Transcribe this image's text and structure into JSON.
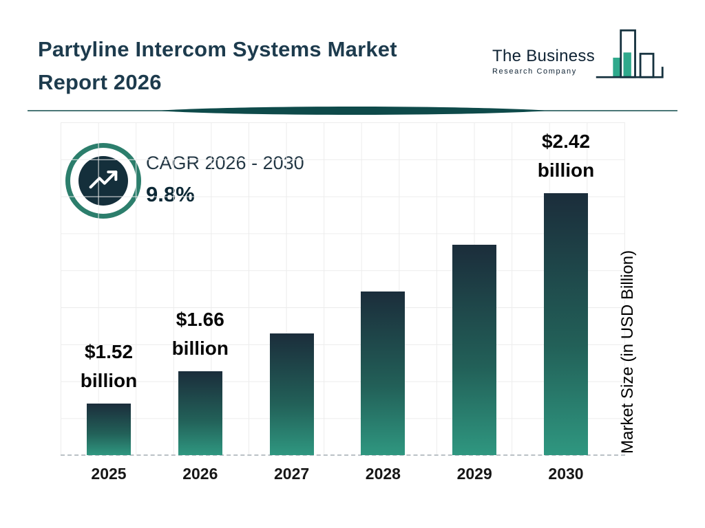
{
  "header": {
    "title_line1": "Partyline Intercom Systems Market",
    "title_line2": "Report 2026",
    "logo": {
      "name_line1": "The Business",
      "name_line2": "Research Company"
    }
  },
  "cagr_badge": {
    "icon": "trending-up-icon",
    "label": "CAGR 2026 - 2030",
    "value": "9.8%"
  },
  "chart_data": {
    "type": "bar",
    "categories": [
      "2025",
      "2026",
      "2027",
      "2028",
      "2029",
      "2030"
    ],
    "values": [
      1.52,
      1.66,
      1.82,
      2.0,
      2.2,
      2.42
    ],
    "bar_labels": {
      "2025": [
        "$1.52",
        "billion"
      ],
      "2026": [
        "$1.66",
        "billion"
      ],
      "2030": [
        "$2.42",
        "billion"
      ]
    },
    "title": "Partyline Intercom Systems Market Report 2026",
    "xlabel": "",
    "ylabel": "Market Size (in USD Billion)",
    "ylim": [
      1.3,
      2.6
    ],
    "grid": true,
    "legend": false
  },
  "colors": {
    "title": "#1d3b4d",
    "accent_teal": "#2f9780",
    "dark_navy": "#142f3b",
    "badge_ring": "#2c7e6c",
    "divider": "#0e4a4a",
    "grid_line": "#ececec",
    "bar_gradient_top": "#1b2d3b",
    "bar_gradient_bottom": "#2f9780"
  },
  "icons": {
    "logo": "bar-chart-logo-icon",
    "badge": "trending-up-icon"
  }
}
